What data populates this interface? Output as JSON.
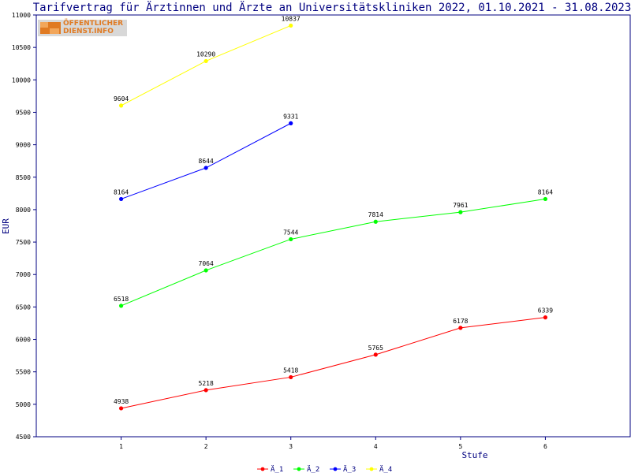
{
  "chart_data": {
    "type": "line",
    "title": "Tarifvertrag für Ärztinnen und Ärzte an Universitätskliniken 2022, 01.10.2021 - 31.08.2023",
    "xlabel": "Stufe",
    "ylabel": "EUR",
    "x": [
      1,
      2,
      3,
      4,
      5,
      6
    ],
    "xlim": [
      0,
      7
    ],
    "ylim": [
      4500,
      11000
    ],
    "yticks": [
      4500,
      5000,
      5500,
      6000,
      6500,
      7000,
      7500,
      8000,
      8500,
      9000,
      9500,
      10000,
      10500,
      11000
    ],
    "legend_position": "bottom-center",
    "grid": false,
    "series": [
      {
        "name": "Ä_1",
        "color": "#ff0000",
        "x": [
          1,
          2,
          3,
          4,
          5,
          6
        ],
        "values": [
          4938,
          5218,
          5418,
          5765,
          6178,
          6339
        ]
      },
      {
        "name": "Ä_2",
        "color": "#00ff00",
        "x": [
          1,
          2,
          3,
          4,
          5,
          6
        ],
        "values": [
          6518,
          7064,
          7544,
          7814,
          7961,
          8164
        ]
      },
      {
        "name": "Ä_3",
        "color": "#0000ff",
        "x": [
          1,
          2,
          3
        ],
        "values": [
          8164,
          8644,
          9331
        ]
      },
      {
        "name": "Ä_4",
        "color": "#ffff00",
        "x": [
          1,
          2,
          3
        ],
        "values": [
          9604,
          10290,
          10837
        ]
      }
    ]
  },
  "logo": {
    "line1": "ÖFFENTLICHER",
    "line2": "DIENST.INFO"
  },
  "colors": {
    "axis": "#000080",
    "background": "#ffffff"
  }
}
